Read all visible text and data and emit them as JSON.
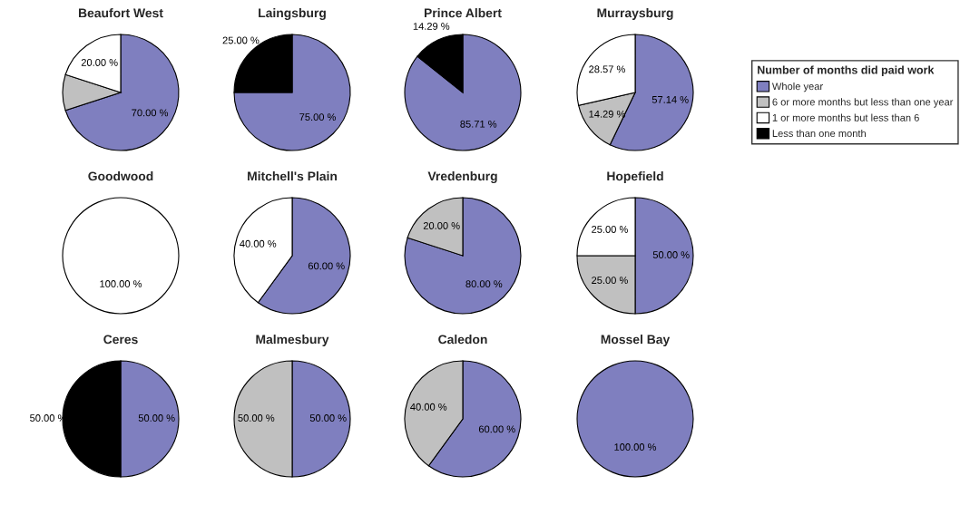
{
  "chart_data": [
    {
      "type": "pie",
      "title": "Beaufort West",
      "categories": [
        "Whole year",
        "6 or more months but less than one year",
        "1 or more months but less than 6",
        "Less than one month"
      ],
      "values": [
        70,
        10,
        20,
        0
      ],
      "value_labels": [
        "70.00 %",
        null,
        "20.00 %",
        null
      ],
      "colors": [
        "#7f7fbf",
        "#c0c0c0",
        "#ffffff",
        "#000000"
      ],
      "legend": "right",
      "legend_title": "Number of months did paid work"
    },
    {
      "type": "pie",
      "title": "Laingsburg",
      "categories": [
        null,
        null,
        null,
        null
      ],
      "values": [
        75,
        0,
        0,
        25
      ],
      "value_labels": [
        "75.00 %",
        null,
        null,
        "25.00 %"
      ],
      "colors": [
        "#7f7fbf",
        "#c0c0c0",
        "#ffffff",
        "#000000"
      ]
    },
    {
      "type": "pie",
      "title": "Prince Albert",
      "categories": [
        null,
        null,
        null,
        null
      ],
      "values": [
        85.71,
        0,
        0,
        14.29
      ],
      "value_labels": [
        "85.71 %",
        null,
        null,
        "14.29 %"
      ],
      "colors": [
        "#7f7fbf",
        "#c0c0c0",
        "#ffffff",
        "#000000"
      ]
    },
    {
      "type": "pie",
      "title": "Murraysburg",
      "categories": [
        null,
        null,
        null,
        null
      ],
      "values": [
        57.14,
        14.29,
        28.57,
        0
      ],
      "value_labels": [
        "57.14 %",
        "14.29 %",
        "28.57 %",
        null
      ],
      "colors": [
        "#7f7fbf",
        "#c0c0c0",
        "#ffffff",
        "#000000"
      ]
    },
    {
      "type": "pie",
      "title": "Goodwood",
      "categories": [
        null,
        null,
        null,
        null
      ],
      "values": [
        0,
        0,
        100,
        0
      ],
      "value_labels": [
        null,
        null,
        "100.00 %",
        null
      ],
      "colors": [
        "#7f7fbf",
        "#c0c0c0",
        "#ffffff",
        "#000000"
      ]
    },
    {
      "type": "pie",
      "title": "Mitchell's Plain",
      "categories": [
        null,
        null,
        null,
        null
      ],
      "values": [
        60,
        0,
        40,
        0
      ],
      "value_labels": [
        "60.00 %",
        null,
        "40.00 %",
        null
      ],
      "colors": [
        "#7f7fbf",
        "#c0c0c0",
        "#ffffff",
        "#000000"
      ]
    },
    {
      "type": "pie",
      "title": "Vredenburg",
      "categories": [
        null,
        null,
        null,
        null
      ],
      "values": [
        80,
        20,
        0,
        0
      ],
      "value_labels": [
        "80.00 %",
        "20.00 %",
        null,
        null
      ],
      "colors": [
        "#7f7fbf",
        "#c0c0c0",
        "#ffffff",
        "#000000"
      ]
    },
    {
      "type": "pie",
      "title": "Hopefield",
      "categories": [
        null,
        null,
        null,
        null
      ],
      "values": [
        50,
        25,
        25,
        0
      ],
      "value_labels": [
        "50.00 %",
        "25.00 %",
        "25.00 %",
        null
      ],
      "colors": [
        "#7f7fbf",
        "#c0c0c0",
        "#ffffff",
        "#000000"
      ]
    },
    {
      "type": "pie",
      "title": "Ceres",
      "categories": [
        null,
        null,
        null,
        null
      ],
      "values": [
        50,
        0,
        0,
        50
      ],
      "value_labels": [
        "50.00 %",
        null,
        null,
        "50.00 %"
      ],
      "colors": [
        "#7f7fbf",
        "#c0c0c0",
        "#ffffff",
        "#000000"
      ]
    },
    {
      "type": "pie",
      "title": "Malmesbury",
      "categories": [
        null,
        null,
        null,
        null
      ],
      "values": [
        50,
        50,
        0,
        0
      ],
      "value_labels": [
        "50.00 %",
        "50.00 %",
        null,
        null
      ],
      "colors": [
        "#7f7fbf",
        "#c0c0c0",
        "#ffffff",
        "#000000"
      ]
    },
    {
      "type": "pie",
      "title": "Caledon",
      "categories": [
        null,
        null,
        null,
        null
      ],
      "values": [
        60,
        40,
        0,
        0
      ],
      "value_labels": [
        "60.00 %",
        "40.00 %",
        null,
        null
      ],
      "colors": [
        "#7f7fbf",
        "#c0c0c0",
        "#ffffff",
        "#000000"
      ]
    },
    {
      "type": "pie",
      "title": "Mossel Bay",
      "categories": [
        null,
        null,
        null,
        null
      ],
      "values": [
        100,
        0,
        0,
        0
      ],
      "value_labels": [
        "100.00 %",
        null,
        null,
        null
      ],
      "colors": [
        "#7f7fbf",
        "#c0c0c0",
        "#ffffff",
        "#000000"
      ]
    }
  ]
}
